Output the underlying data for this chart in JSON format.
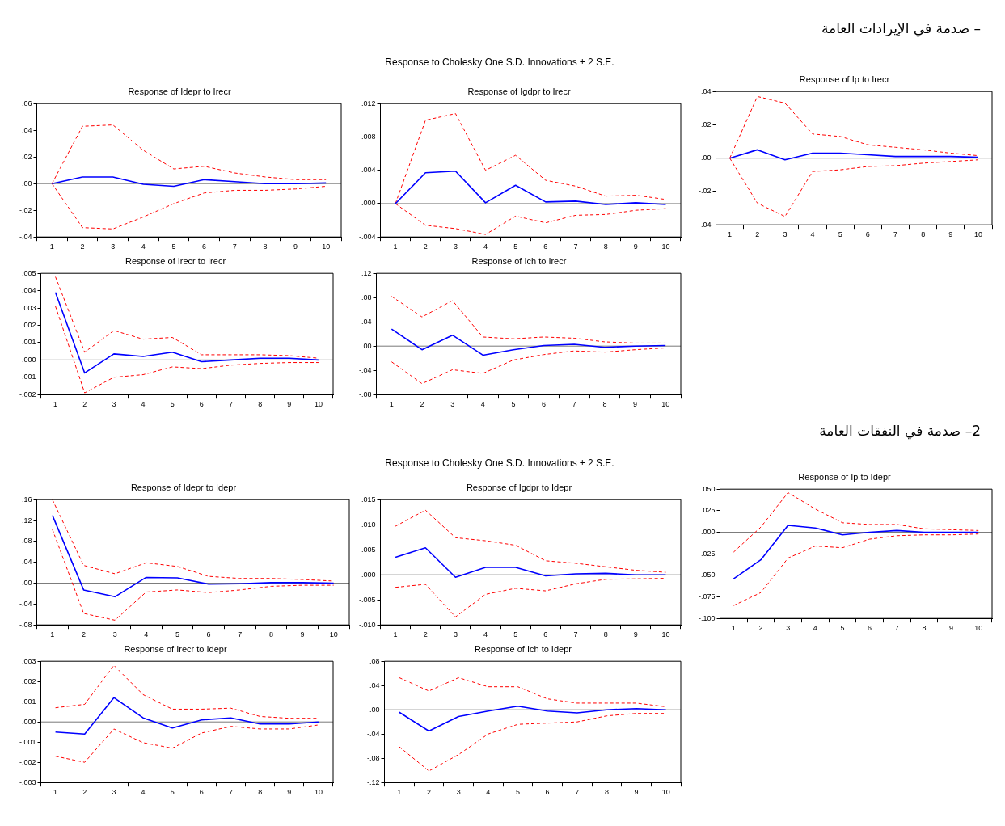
{
  "chart_data": [
    {
      "type": "line",
      "title": "Response of Idepr to Irecr",
      "annotations": [
        "– صدمة في الإيرادات العامة",
        "Response to Cholesky One S.D. Innovations ± 2 S.E."
      ],
      "categories": [
        "1",
        "2",
        "3",
        "4",
        "5",
        "6",
        "7",
        "8",
        "9",
        "10"
      ],
      "series": [
        {
          "color": "#0000ff",
          "line_style": "solid",
          "values": [
            0,
            0.005,
            0.005,
            -0.0005,
            -0.002,
            0.003,
            0.0015,
            0,
            0,
            0.0005
          ]
        },
        {
          "color": "#ff0000",
          "line_style": "dashed",
          "values": [
            0,
            0.043,
            0.044,
            0.025,
            0.011,
            0.013,
            0.008,
            0.005,
            0.003,
            0.003
          ]
        },
        {
          "color": "#ff0000",
          "line_style": "dashed",
          "values": [
            0,
            -0.033,
            -0.034,
            -0.025,
            -0.015,
            -0.007,
            -0.005,
            -0.005,
            -0.004,
            -0.002
          ]
        }
      ],
      "ylim": [
        -0.04,
        0.06
      ],
      "yticks": [
        {
          "value": -0.04,
          "label": "-.04"
        },
        {
          "value": -0.02,
          "label": "-.02"
        },
        {
          "value": 0,
          "label": ".00"
        },
        {
          "value": 0.02,
          "label": ".02"
        },
        {
          "value": 0.04,
          "label": ".04"
        },
        {
          "value": 0.06,
          "label": ".06"
        }
      ],
      "ref_lines": [
        {
          "axis": "y",
          "value": 0
        }
      ]
    },
    {
      "type": "line",
      "title": "Response of Igdpr to Irecr",
      "categories": [
        "1",
        "2",
        "3",
        "4",
        "5",
        "6",
        "7",
        "8",
        "9",
        "10"
      ],
      "series": [
        {
          "color": "#0000ff",
          "line_style": "solid",
          "values": [
            0,
            0.0037,
            0.0039,
            0.0001,
            0.0022,
            0.0002,
            0.0003,
            -0.0001,
            0.0001,
            -0.0001
          ]
        },
        {
          "color": "#ff0000",
          "line_style": "dashed",
          "values": [
            0,
            0.01,
            0.0108,
            0.004,
            0.0058,
            0.0028,
            0.0021,
            0.0009,
            0.001,
            0.0005
          ]
        },
        {
          "color": "#ff0000",
          "line_style": "dashed",
          "values": [
            0,
            -0.0026,
            -0.003,
            -0.0037,
            -0.0015,
            -0.0023,
            -0.0014,
            -0.0013,
            -0.0008,
            -0.0006
          ]
        }
      ],
      "ylim": [
        -0.004,
        0.012
      ],
      "yticks": [
        {
          "value": -0.004,
          "label": "-.004"
        },
        {
          "value": 0,
          "label": ".000"
        },
        {
          "value": 0.004,
          "label": ".004"
        },
        {
          "value": 0.008,
          "label": ".008"
        },
        {
          "value": 0.012,
          "label": ".012"
        }
      ],
      "ref_lines": [
        {
          "axis": "y",
          "value": 0
        }
      ]
    },
    {
      "type": "line",
      "title": "Response of Ip to Irecr",
      "categories": [
        "1",
        "2",
        "3",
        "4",
        "5",
        "6",
        "7",
        "8",
        "9",
        "10"
      ],
      "series": [
        {
          "color": "#0000ff",
          "line_style": "solid",
          "values": [
            0,
            0.005,
            -0.001,
            0.003,
            0.003,
            0.002,
            0.001,
            0.001,
            0.001,
            0.0005
          ]
        },
        {
          "color": "#ff0000",
          "line_style": "dashed",
          "values": [
            0,
            0.037,
            0.033,
            0.0145,
            0.013,
            0.008,
            0.0065,
            0.005,
            0.003,
            0.0015
          ]
        },
        {
          "color": "#ff0000",
          "line_style": "dashed",
          "values": [
            0,
            -0.027,
            -0.035,
            -0.008,
            -0.007,
            -0.005,
            -0.0045,
            -0.003,
            -0.002,
            -0.001
          ]
        }
      ],
      "ylim": [
        -0.04,
        0.04
      ],
      "yticks": [
        {
          "value": -0.04,
          "label": "-.04"
        },
        {
          "value": -0.02,
          "label": "-.02"
        },
        {
          "value": 0,
          "label": ".00"
        },
        {
          "value": 0.02,
          "label": ".02"
        },
        {
          "value": 0.04,
          "label": ".04"
        }
      ],
      "ref_lines": [
        {
          "axis": "y",
          "value": 0
        }
      ]
    },
    {
      "type": "line",
      "title": "Response of Irecr to Irecr",
      "categories": [
        "1",
        "2",
        "3",
        "4",
        "5",
        "6",
        "7",
        "8",
        "9",
        "10"
      ],
      "series": [
        {
          "color": "#0000ff",
          "line_style": "solid",
          "values": [
            0.0039,
            -0.00075,
            0.00035,
            0.0002,
            0.00045,
            -0.0001,
            0,
            0.0001,
            0.0001,
            0
          ]
        },
        {
          "color": "#ff0000",
          "line_style": "dashed",
          "values": [
            0.0048,
            0.00045,
            0.0017,
            0.0012,
            0.0013,
            0.0003,
            0.0003,
            0.0003,
            0.00025,
            0.0001
          ]
        },
        {
          "color": "#ff0000",
          "line_style": "dashed",
          "values": [
            0.0031,
            -0.0019,
            -0.001,
            -0.00085,
            -0.0004,
            -0.0005,
            -0.0003,
            -0.0002,
            -0.00015,
            -0.00015
          ]
        }
      ],
      "ylim": [
        -0.002,
        0.005
      ],
      "yticks": [
        {
          "value": -0.002,
          "label": "-.002"
        },
        {
          "value": -0.001,
          "label": "-.001"
        },
        {
          "value": 0,
          "label": ".000"
        },
        {
          "value": 0.001,
          "label": ".001"
        },
        {
          "value": 0.002,
          "label": ".002"
        },
        {
          "value": 0.003,
          "label": ".003"
        },
        {
          "value": 0.004,
          "label": ".004"
        },
        {
          "value": 0.005,
          "label": ".005"
        }
      ],
      "ref_lines": [
        {
          "axis": "y",
          "value": 0
        }
      ]
    },
    {
      "type": "line",
      "title": "Response of Ich to Irecr",
      "categories": [
        "1",
        "2",
        "3",
        "4",
        "5",
        "6",
        "7",
        "8",
        "9",
        "10"
      ],
      "series": [
        {
          "color": "#0000ff",
          "line_style": "solid",
          "values": [
            0.028,
            -0.006,
            0.018,
            -0.015,
            -0.006,
            0.001,
            0.003,
            -0.002,
            0,
            0.001
          ]
        },
        {
          "color": "#ff0000",
          "line_style": "dashed",
          "values": [
            0.082,
            0.048,
            0.075,
            0.015,
            0.012,
            0.015,
            0.013,
            0.007,
            0.005,
            0.005
          ]
        },
        {
          "color": "#ff0000",
          "line_style": "dashed",
          "values": [
            -0.026,
            -0.062,
            -0.039,
            -0.045,
            -0.023,
            -0.014,
            -0.008,
            -0.01,
            -0.006,
            -0.003
          ]
        }
      ],
      "ylim": [
        -0.08,
        0.12
      ],
      "yticks": [
        {
          "value": -0.08,
          "label": "-.08"
        },
        {
          "value": -0.04,
          "label": "-.04"
        },
        {
          "value": 0,
          "label": ".00"
        },
        {
          "value": 0.04,
          "label": ".04"
        },
        {
          "value": 0.08,
          "label": ".08"
        },
        {
          "value": 0.12,
          "label": ".12"
        }
      ],
      "ref_lines": [
        {
          "axis": "y",
          "value": 0
        }
      ]
    },
    {
      "type": "line",
      "title": "Response of Idepr to Idepr",
      "annotations": [
        "2– صدمة في النفقات العامة",
        "Response to Cholesky One S.D. Innovations ± 2 S.E."
      ],
      "categories": [
        "1",
        "2",
        "3",
        "4",
        "5",
        "6",
        "7",
        "8",
        "9",
        "10"
      ],
      "series": [
        {
          "color": "#0000ff",
          "line_style": "solid",
          "values": [
            0.13,
            -0.013,
            -0.026,
            0.011,
            0.01,
            -0.002,
            -0.001,
            0.001,
            0.001,
            0
          ]
        },
        {
          "color": "#ff0000",
          "line_style": "dashed",
          "values": [
            0.16,
            0.034,
            0.018,
            0.039,
            0.032,
            0.013,
            0.009,
            0.009,
            0.007,
            0.004
          ]
        },
        {
          "color": "#ff0000",
          "line_style": "dashed",
          "values": [
            0.103,
            -0.058,
            -0.071,
            -0.017,
            -0.013,
            -0.018,
            -0.013,
            -0.006,
            -0.004,
            -0.004
          ]
        }
      ],
      "ylim": [
        -0.08,
        0.16
      ],
      "yticks": [
        {
          "value": -0.08,
          "label": "-.08"
        },
        {
          "value": -0.04,
          "label": "-.04"
        },
        {
          "value": 0,
          "label": ".00"
        },
        {
          "value": 0.04,
          "label": ".04"
        },
        {
          "value": 0.08,
          "label": ".08"
        },
        {
          "value": 0.12,
          "label": ".12"
        },
        {
          "value": 0.16,
          "label": ".16"
        }
      ],
      "ref_lines": [
        {
          "axis": "y",
          "value": 0
        }
      ]
    },
    {
      "type": "line",
      "title": "Response of Igdpr to Idepr",
      "categories": [
        "1",
        "2",
        "3",
        "4",
        "5",
        "6",
        "7",
        "8",
        "9",
        "10"
      ],
      "series": [
        {
          "color": "#0000ff",
          "line_style": "solid",
          "values": [
            0.0035,
            0.0054,
            -0.0005,
            0.0015,
            0.0015,
            -0.0002,
            0.0002,
            0.0003,
            0,
            0
          ]
        },
        {
          "color": "#ff0000",
          "line_style": "dashed",
          "values": [
            0.0097,
            0.0129,
            0.0074,
            0.0068,
            0.0059,
            0.0028,
            0.0023,
            0.0016,
            0.0009,
            0.0005
          ]
        },
        {
          "color": "#ff0000",
          "line_style": "dashed",
          "values": [
            -0.0025,
            -0.0019,
            -0.0084,
            -0.0039,
            -0.0027,
            -0.0032,
            -0.0018,
            -0.0009,
            -0.0008,
            -0.0007
          ]
        }
      ],
      "ylim": [
        -0.01,
        0.015
      ],
      "yticks": [
        {
          "value": -0.01,
          "label": "-.010"
        },
        {
          "value": -0.005,
          "label": "-.005"
        },
        {
          "value": 0,
          "label": ".000"
        },
        {
          "value": 0.005,
          "label": ".005"
        },
        {
          "value": 0.01,
          "label": ".010"
        },
        {
          "value": 0.015,
          "label": ".015"
        }
      ],
      "ref_lines": [
        {
          "axis": "y",
          "value": 0
        }
      ]
    },
    {
      "type": "line",
      "title": "Response of Ip to Idepr",
      "categories": [
        "1",
        "2",
        "3",
        "4",
        "5",
        "6",
        "7",
        "8",
        "9",
        "10"
      ],
      "series": [
        {
          "color": "#0000ff",
          "line_style": "solid",
          "values": [
            -0.054,
            -0.032,
            0.008,
            0.005,
            -0.003,
            0,
            0.002,
            0,
            0,
            0
          ]
        },
        {
          "color": "#ff0000",
          "line_style": "dashed",
          "values": [
            -0.023,
            0.006,
            0.046,
            0.027,
            0.011,
            0.009,
            0.009,
            0.004,
            0.003,
            0.002
          ]
        },
        {
          "color": "#ff0000",
          "line_style": "dashed",
          "values": [
            -0.085,
            -0.07,
            -0.03,
            -0.016,
            -0.018,
            -0.008,
            -0.004,
            -0.003,
            -0.003,
            -0.002
          ]
        }
      ],
      "ylim": [
        -0.1,
        0.05
      ],
      "yticks": [
        {
          "value": -0.1,
          "label": "-.100"
        },
        {
          "value": -0.075,
          "label": "-.075"
        },
        {
          "value": -0.05,
          "label": "-.050"
        },
        {
          "value": -0.025,
          "label": "-.025"
        },
        {
          "value": 0,
          "label": ".000"
        },
        {
          "value": 0.025,
          "label": ".025"
        },
        {
          "value": 0.05,
          "label": ".050"
        }
      ],
      "ref_lines": [
        {
          "axis": "y",
          "value": 0
        }
      ]
    },
    {
      "type": "line",
      "title": "Response of Irecr to Idepr",
      "categories": [
        "1",
        "2",
        "3",
        "4",
        "5",
        "6",
        "7",
        "8",
        "9",
        "10"
      ],
      "series": [
        {
          "color": "#0000ff",
          "line_style": "solid",
          "values": [
            -0.0005,
            -0.0006,
            0.0012,
            0.0002,
            -0.0003,
            0.0001,
            0.0002,
            -0.0001,
            -0.0001,
            0
          ]
        },
        {
          "color": "#ff0000",
          "line_style": "dashed",
          "values": [
            0.0007,
            0.00087,
            0.0028,
            0.00135,
            0.00063,
            0.00063,
            0.00068,
            0.00027,
            0.00018,
            0.00018
          ]
        },
        {
          "color": "#ff0000",
          "line_style": "dashed",
          "values": [
            -0.0017,
            -0.002,
            -0.00035,
            -0.00103,
            -0.0013,
            -0.00055,
            -0.00022,
            -0.00035,
            -0.00035,
            -0.00015
          ]
        }
      ],
      "ylim": [
        -0.003,
        0.003
      ],
      "yticks": [
        {
          "value": -0.003,
          "label": "-.003"
        },
        {
          "value": -0.002,
          "label": "-.002"
        },
        {
          "value": -0.001,
          "label": "-.001"
        },
        {
          "value": 0,
          "label": ".000"
        },
        {
          "value": 0.001,
          "label": ".001"
        },
        {
          "value": 0.002,
          "label": ".002"
        },
        {
          "value": 0.003,
          "label": ".003"
        }
      ],
      "ref_lines": [
        {
          "axis": "y",
          "value": 0
        }
      ]
    },
    {
      "type": "line",
      "title": "Response of Ich to Idepr",
      "categories": [
        "1",
        "2",
        "3",
        "4",
        "5",
        "6",
        "7",
        "8",
        "9",
        "10"
      ],
      "series": [
        {
          "color": "#0000ff",
          "line_style": "solid",
          "values": [
            -0.004,
            -0.035,
            -0.011,
            -0.002,
            0.006,
            -0.002,
            -0.005,
            0,
            0.002,
            0
          ]
        },
        {
          "color": "#ff0000",
          "line_style": "dashed",
          "values": [
            0.053,
            0.031,
            0.053,
            0.038,
            0.038,
            0.018,
            0.011,
            0.011,
            0.011,
            0.005
          ]
        },
        {
          "color": "#ff0000",
          "line_style": "dashed",
          "values": [
            -0.061,
            -0.101,
            -0.074,
            -0.04,
            -0.024,
            -0.022,
            -0.02,
            -0.01,
            -0.006,
            -0.006
          ]
        }
      ],
      "ylim": [
        -0.12,
        0.08
      ],
      "yticks": [
        {
          "value": -0.12,
          "label": "-.12"
        },
        {
          "value": -0.08,
          "label": "-.08"
        },
        {
          "value": -0.04,
          "label": "-.04"
        },
        {
          "value": 0,
          "label": ".00"
        },
        {
          "value": 0.04,
          "label": ".04"
        },
        {
          "value": 0.08,
          "label": ".08"
        }
      ],
      "ref_lines": [
        {
          "axis": "y",
          "value": 0
        }
      ]
    }
  ]
}
